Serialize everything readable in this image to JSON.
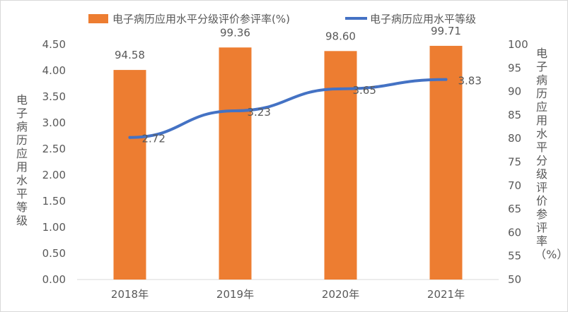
{
  "chart_data": {
    "type": "bar+line",
    "categories": [
      "2018年",
      "2019年",
      "2020年",
      "2021年"
    ],
    "series": [
      {
        "name": "电子病历应用水平分级评价参评率(%)",
        "type": "bar",
        "axis": "right",
        "values": [
          94.58,
          99.36,
          98.6,
          99.71
        ],
        "labels": [
          "94.58",
          "99.36",
          "98.60",
          "99.71"
        ],
        "color": "#ED7D31"
      },
      {
        "name": "电子病历应用水平等级",
        "type": "line",
        "axis": "left",
        "values": [
          2.72,
          3.23,
          3.65,
          3.83
        ],
        "labels": [
          "2.72",
          "3.23",
          "3.65",
          "3.83"
        ],
        "color": "#4472C4"
      }
    ],
    "y_left": {
      "label": "电子病历应用水平等级",
      "ylim": [
        0,
        4.5
      ],
      "ticks": [
        "0.00",
        "0.50",
        "1.00",
        "1.50",
        "2.00",
        "2.50",
        "3.00",
        "3.50",
        "4.00",
        "4.50"
      ]
    },
    "y_right": {
      "label": "电子病历应用水平分级评价参评率（%）",
      "ylim": [
        50,
        100
      ],
      "ticks": [
        "50",
        "55",
        "60",
        "65",
        "70",
        "75",
        "80",
        "85",
        "90",
        "95",
        "100"
      ]
    },
    "legend_position": "top",
    "grid": false
  }
}
